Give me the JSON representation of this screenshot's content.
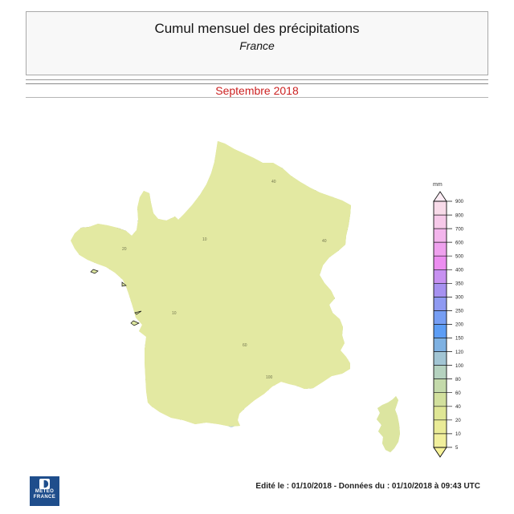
{
  "header": {
    "title": "Cumul mensuel des précipitations",
    "subtitle": "France"
  },
  "period": {
    "label": "Septembre 2018",
    "text_color": "#cc2222"
  },
  "map": {
    "kind": "filled-contour precipitation map",
    "region": "France",
    "unit": "mm",
    "base_color": "#e3e9a2",
    "contour_labels": [
      "40",
      "10",
      "20",
      "10",
      "60",
      "100",
      "40"
    ],
    "scale": {
      "unit_label": "mm",
      "ticks": [
        "900",
        "800",
        "700",
        "600",
        "500",
        "400",
        "350",
        "300",
        "250",
        "200",
        "150",
        "120",
        "100",
        "80",
        "60",
        "40",
        "20",
        "10",
        "5"
      ],
      "segment_colors": [
        "#f8dbe9",
        "#f6c9e9",
        "#f3b5ec",
        "#efa1ee",
        "#ec8df0",
        "#c791f1",
        "#a691f0",
        "#8f9af2",
        "#769ef4",
        "#5c9df5",
        "#7eb1e2",
        "#a2c5d4",
        "#b5d2bf",
        "#c4daab",
        "#d2e09d",
        "#dfe695",
        "#eaeb97",
        "#f1ef9c"
      ],
      "above_max_color": "#fcecf4",
      "below_min_color": "#f7f399"
    }
  },
  "footer": {
    "logo": {
      "line1": "METEO",
      "line2": "FRANCE",
      "bg_color": "#1f4e8c"
    },
    "edited_text": "Edité le : 01/10/2018 - Données du : 01/10/2018 à 09:43 UTC"
  }
}
